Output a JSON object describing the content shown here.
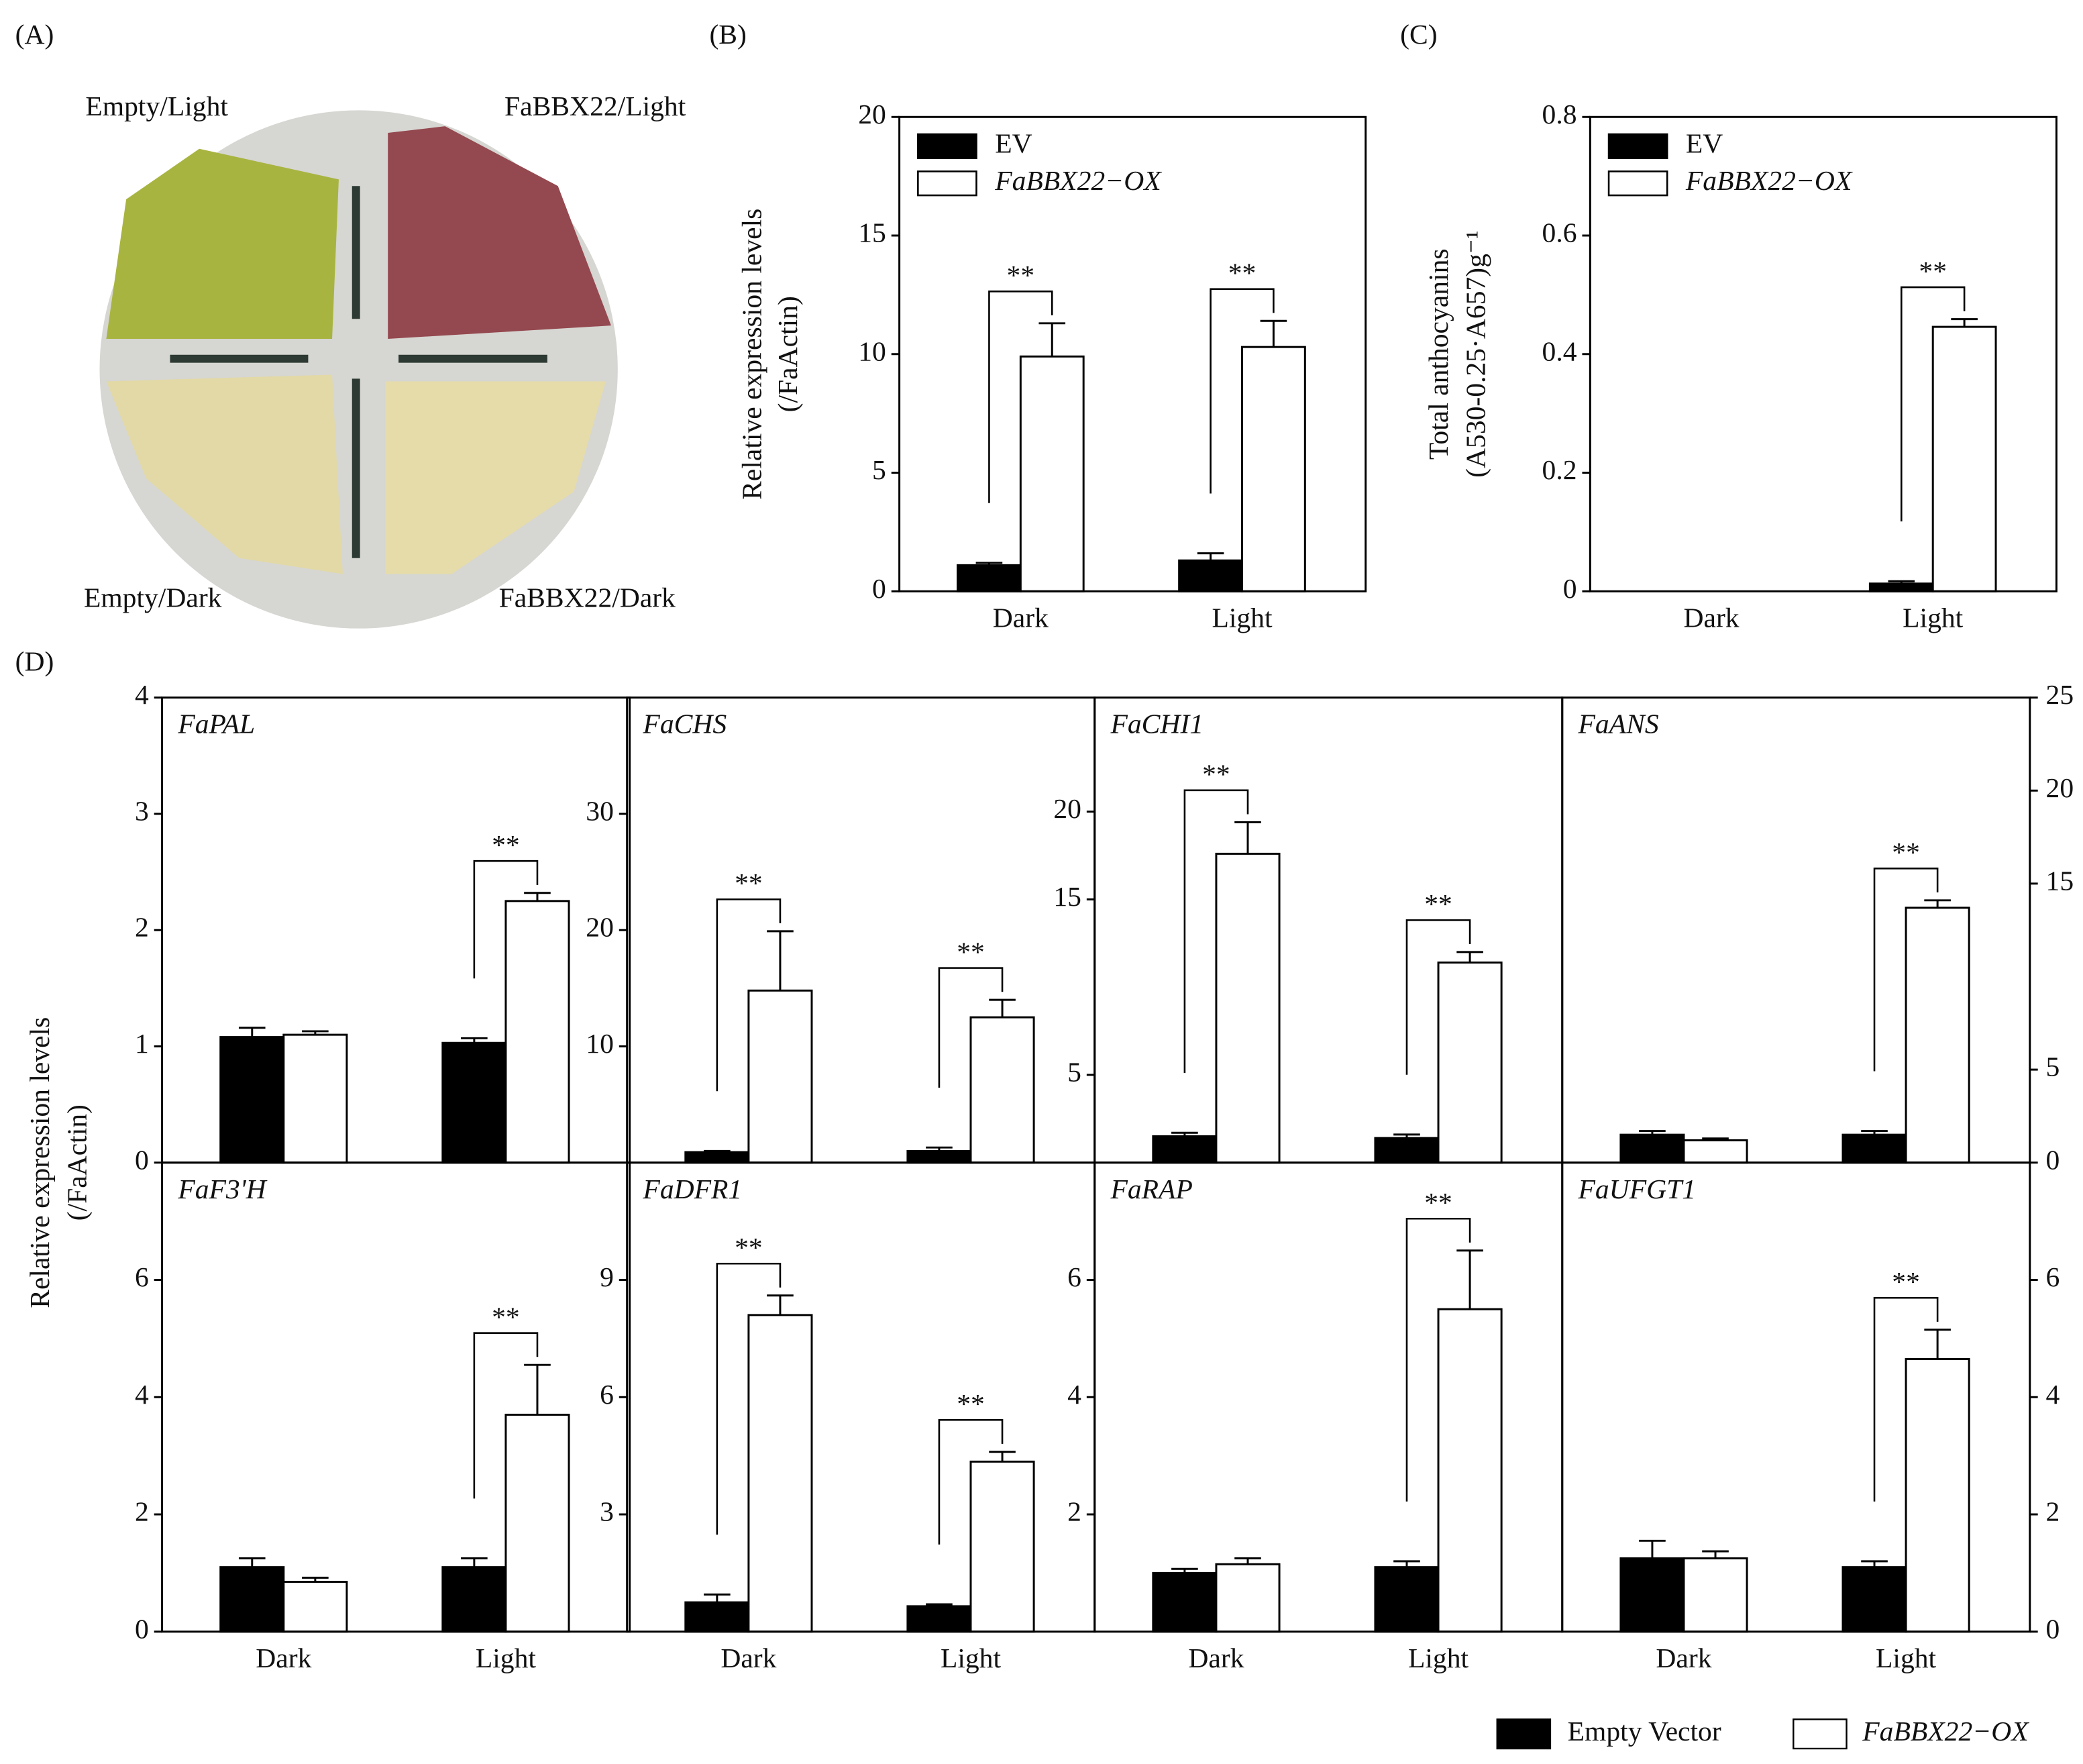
{
  "panel_a": {
    "label": "(A)",
    "quadrant_labels": [
      "Empty/Light",
      "FaBBX22/Light",
      "Empty/Dark",
      "FaBBX22/Dark"
    ]
  },
  "panel_d": {
    "label": "(D)",
    "y_label": [
      "Relative expression levels",
      "(/FaActin)"
    ]
  },
  "chart_data": [
    {
      "type": "bar",
      "panel_label": "(B)",
      "y_label": [
        "Relative expression levels",
        "(/FaActin)"
      ],
      "categories": [
        "Dark",
        "Light"
      ],
      "series": [
        {
          "name": "EV",
          "color": "#000000",
          "values": [
            1.1,
            1.3
          ],
          "errors": [
            0.1,
            0.3
          ]
        },
        {
          "name": "FaBBX22−OX",
          "color": "#ffffff",
          "values": [
            9.9,
            10.3
          ],
          "errors": [
            1.4,
            1.1
          ]
        }
      ],
      "significance": [
        "**",
        "**"
      ],
      "ylim": [
        0,
        20
      ],
      "yticks": [
        0,
        5,
        10,
        15,
        20
      ],
      "legend": "upper left"
    },
    {
      "type": "bar",
      "panel_label": "(C)",
      "y_label": [
        "Total anthocyanins",
        "(A530-0.25·A657)g⁻¹"
      ],
      "categories": [
        "Dark",
        "Light"
      ],
      "series": [
        {
          "name": "EV",
          "color": "#000000",
          "values": [
            null,
            0.013
          ],
          "errors": [
            null,
            0.004
          ]
        },
        {
          "name": "FaBBX22−OX",
          "color": "#ffffff",
          "values": [
            null,
            0.446
          ],
          "errors": [
            null,
            0.013
          ]
        }
      ],
      "significance": [
        null,
        "**"
      ],
      "ylim": [
        0,
        0.8
      ],
      "yticks": [
        0,
        0.2,
        0.4,
        0.6,
        0.8
      ],
      "legend": "upper left"
    },
    {
      "type": "bar",
      "title": "FaPAL",
      "categories": [
        null,
        null
      ],
      "series": [
        {
          "name": "Empty Vector",
          "color": "#000000",
          "values": [
            1.08,
            1.03
          ],
          "errors": [
            0.08,
            0.04
          ]
        },
        {
          "name": "FaBBX22−OX",
          "color": "#ffffff",
          "values": [
            1.1,
            2.25
          ],
          "errors": [
            0.03,
            0.07
          ]
        }
      ],
      "significance": [
        null,
        "**"
      ],
      "ylim": [
        0,
        4
      ],
      "yticks": [
        0,
        1,
        2,
        3,
        4
      ],
      "y_axis_side": "left"
    },
    {
      "type": "bar",
      "title": "FaCHS",
      "categories": [
        null,
        null
      ],
      "series": [
        {
          "color": "#000000",
          "values": [
            0.9,
            1.0
          ],
          "errors": [
            0.1,
            0.3
          ]
        },
        {
          "color": "#ffffff",
          "values": [
            14.8,
            12.5
          ],
          "errors": [
            5.1,
            1.5
          ]
        }
      ],
      "significance": [
        "**",
        "**"
      ],
      "ylim": [
        0,
        40
      ],
      "yticks": [
        10,
        20,
        30
      ],
      "y_axis_side": "left"
    },
    {
      "type": "bar",
      "title": "FaCHI1",
      "categories": [
        null,
        null
      ],
      "series": [
        {
          "color": "#000000",
          "values": [
            1.5,
            1.4
          ],
          "errors": [
            0.2,
            0.2
          ]
        },
        {
          "color": "#ffffff",
          "values": [
            17.6,
            11.4
          ],
          "errors": [
            1.8,
            0.6
          ]
        }
      ],
      "significance": [
        "**",
        "**"
      ],
      "ylim": [
        0,
        26.5
      ],
      "yticks": [
        5,
        15,
        20
      ],
      "y_axis_side": "left"
    },
    {
      "type": "bar",
      "title": "FaANS",
      "categories": [
        null,
        null
      ],
      "series": [
        {
          "color": "#000000",
          "values": [
            1.5,
            1.5
          ],
          "errors": [
            0.2,
            0.2
          ]
        },
        {
          "color": "#ffffff",
          "values": [
            1.2,
            13.7
          ],
          "errors": [
            0.1,
            0.4
          ]
        }
      ],
      "significance": [
        null,
        "**"
      ],
      "ylim": [
        0,
        25
      ],
      "yticks": [
        0,
        5,
        15,
        20,
        25
      ],
      "y_axis_side": "right"
    },
    {
      "type": "bar",
      "title": "FaF3'H",
      "categories": [
        "Dark",
        "Light"
      ],
      "series": [
        {
          "color": "#000000",
          "values": [
            1.1,
            1.1
          ],
          "errors": [
            0.15,
            0.15
          ]
        },
        {
          "color": "#ffffff",
          "values": [
            0.85,
            3.7
          ],
          "errors": [
            0.07,
            0.85
          ]
        }
      ],
      "significance": [
        null,
        "**"
      ],
      "ylim": [
        0,
        8
      ],
      "yticks": [
        0,
        2,
        4,
        6
      ],
      "y_axis_side": "left"
    },
    {
      "type": "bar",
      "title": "FaDFR1",
      "categories": [
        "Dark",
        "Light"
      ],
      "series": [
        {
          "color": "#000000",
          "values": [
            0.75,
            0.65
          ],
          "errors": [
            0.2,
            0.05
          ]
        },
        {
          "color": "#ffffff",
          "values": [
            8.1,
            4.35
          ],
          "errors": [
            0.5,
            0.25
          ]
        }
      ],
      "significance": [
        "**",
        "**"
      ],
      "ylim": [
        0,
        12
      ],
      "yticks": [
        3,
        6,
        9
      ],
      "y_axis_side": "left"
    },
    {
      "type": "bar",
      "title": "FaRAP",
      "categories": [
        "Dark",
        "Light"
      ],
      "series": [
        {
          "color": "#000000",
          "values": [
            1.0,
            1.1
          ],
          "errors": [
            0.07,
            0.1
          ]
        },
        {
          "color": "#ffffff",
          "values": [
            1.15,
            5.5
          ],
          "errors": [
            0.1,
            1.0
          ]
        }
      ],
      "significance": [
        null,
        "**"
      ],
      "ylim": [
        0,
        8
      ],
      "yticks": [
        2,
        4,
        6
      ],
      "y_axis_side": "left"
    },
    {
      "type": "bar",
      "title": "FaUFGT1",
      "categories": [
        "Dark",
        "Light"
      ],
      "series": [
        {
          "color": "#000000",
          "values": [
            1.25,
            1.1
          ],
          "errors": [
            0.3,
            0.1
          ]
        },
        {
          "color": "#ffffff",
          "values": [
            1.25,
            4.65
          ],
          "errors": [
            0.12,
            0.5
          ]
        }
      ],
      "significance": [
        null,
        "**"
      ],
      "ylim": [
        0,
        8
      ],
      "yticks": [
        0,
        2,
        4,
        6
      ],
      "y_axis_side": "right"
    }
  ]
}
